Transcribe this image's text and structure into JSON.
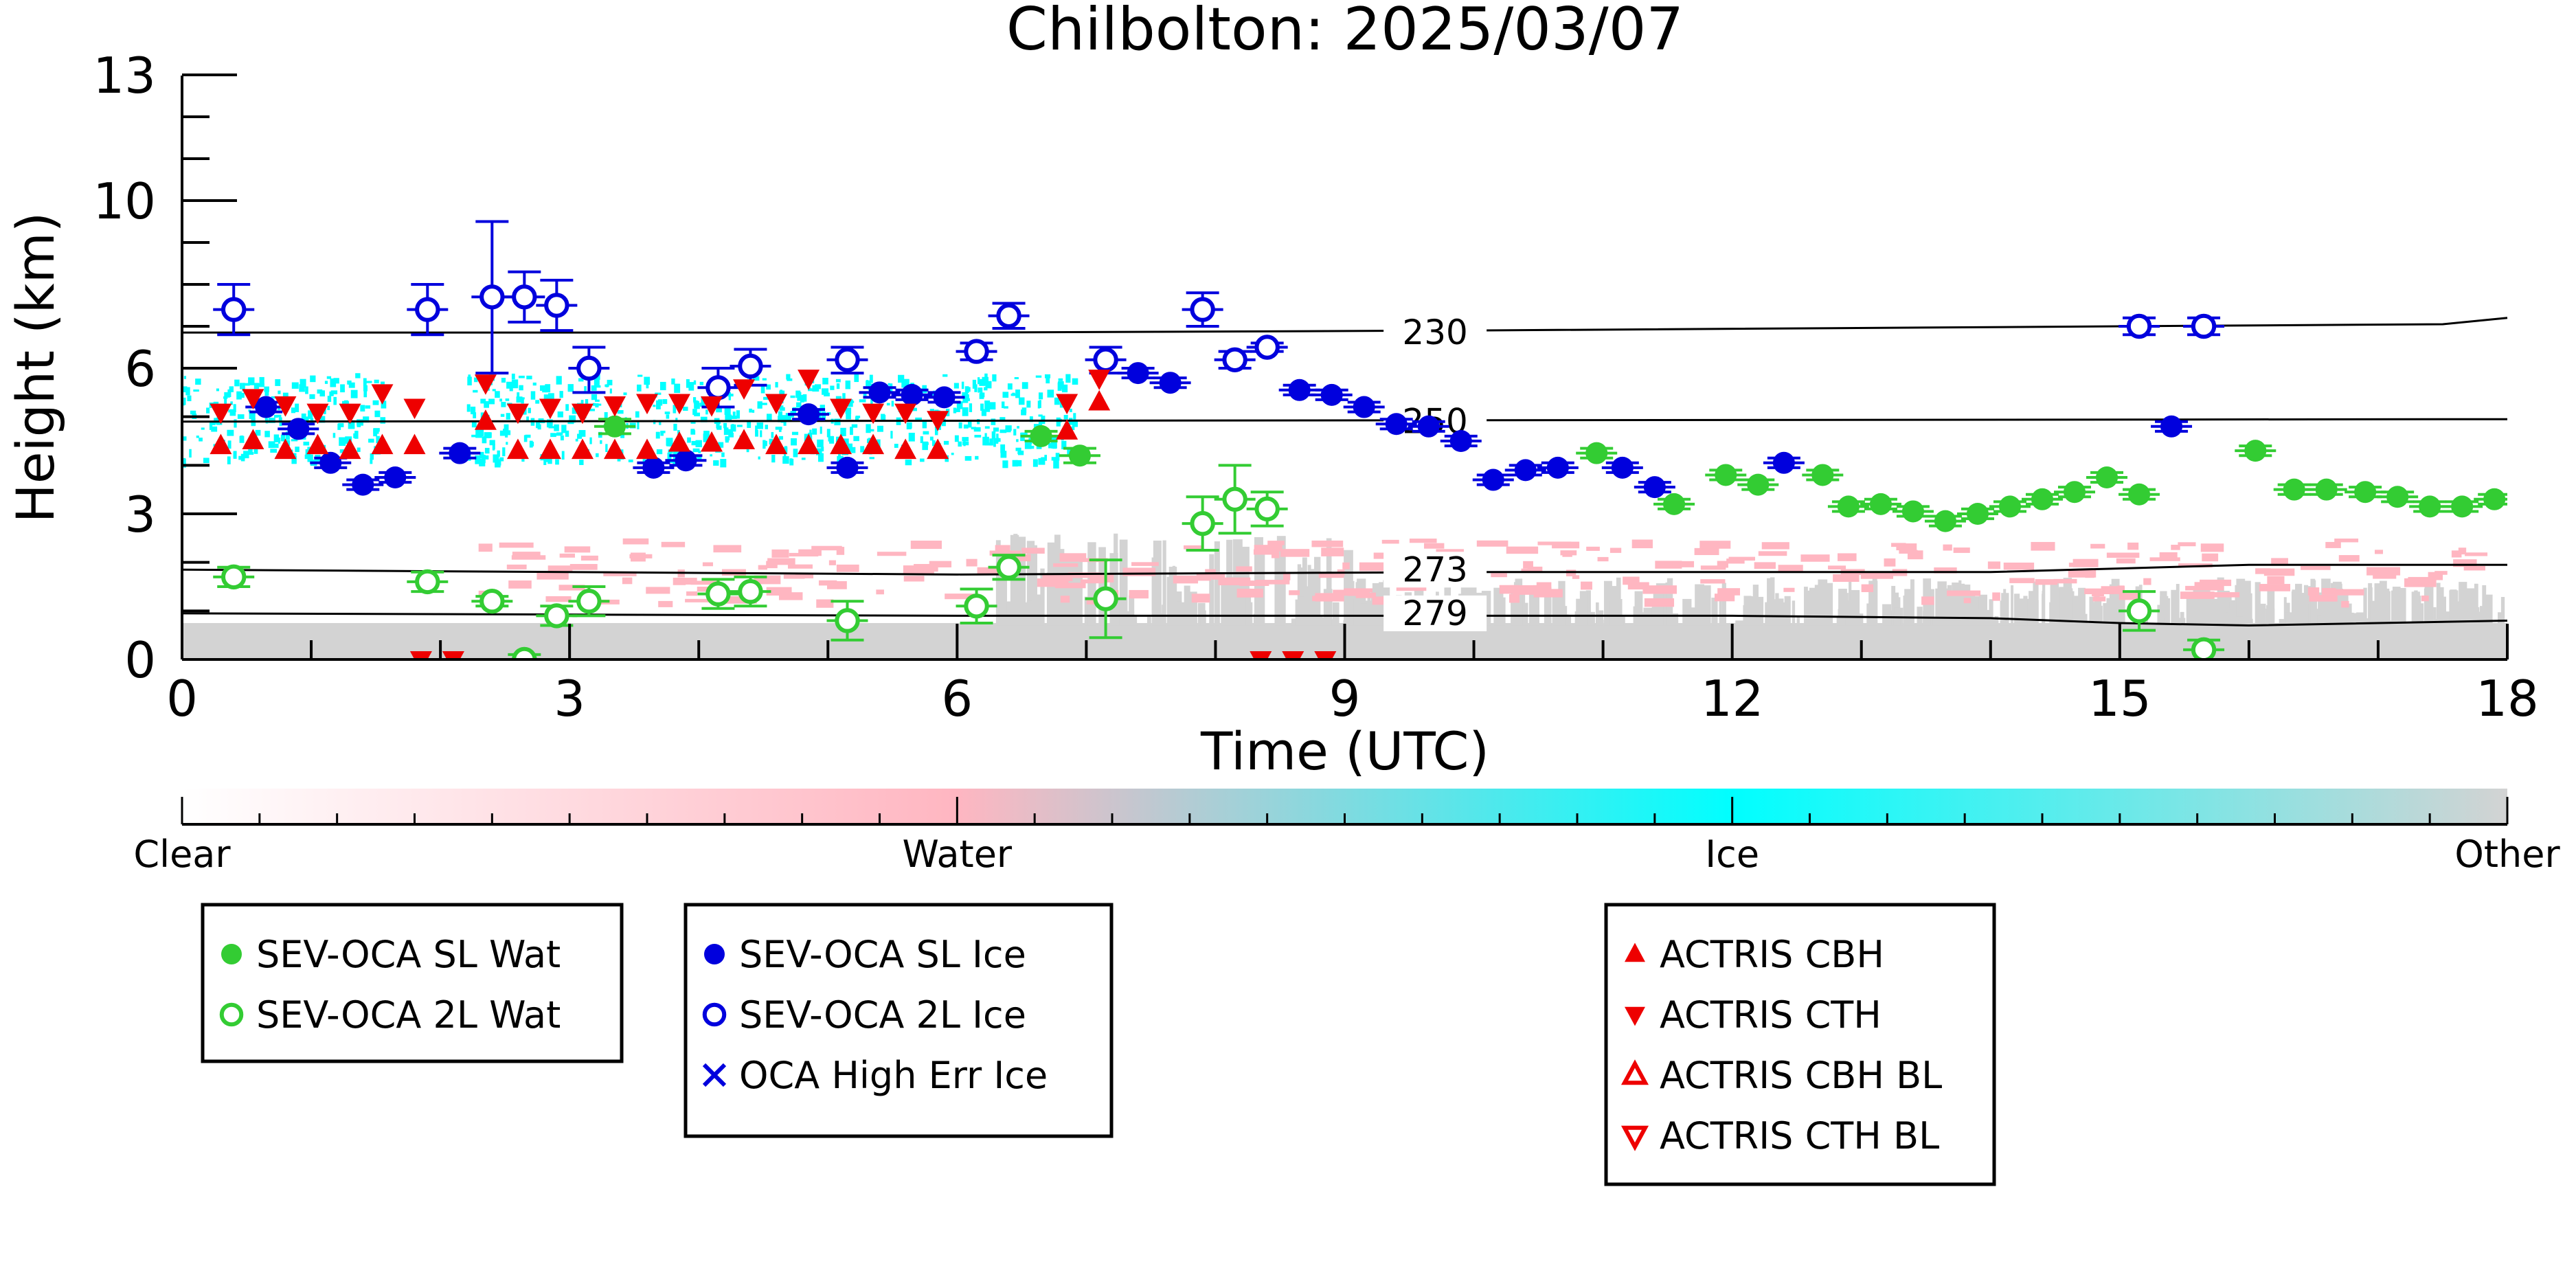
{
  "chart_data": {
    "type": "scatter",
    "title": "Chilbolton: 2025/03/07",
    "xlabel": "Time (UTC)",
    "ylabel": "Height (km)",
    "xlim": [
      0,
      18
    ],
    "ylim": [
      0,
      13
    ],
    "x_ticks": [
      "0",
      "3",
      "6",
      "9",
      "12",
      "15",
      "18"
    ],
    "y_ticks": [
      "0",
      "3",
      "6",
      "10",
      "13"
    ],
    "y_axis_piecewise": true,
    "grid": false,
    "colorbar": {
      "labels": [
        "Clear",
        "Water",
        "Ice",
        "Other"
      ],
      "colors": [
        "#ffffff",
        "#ffb6c1",
        "#00ffff",
        "#d3d3d3"
      ]
    },
    "legend": [
      {
        "label": "SEV-OCA SL Wat",
        "marker": "circle-filled",
        "color": "#33cc33"
      },
      {
        "label": "SEV-OCA 2L Wat",
        "marker": "circle-open",
        "color": "#33cc33"
      },
      {
        "label": "SEV-OCA SL Ice",
        "marker": "circle-filled",
        "color": "#0000dd"
      },
      {
        "label": "SEV-OCA 2L Ice",
        "marker": "circle-open",
        "color": "#0000dd"
      },
      {
        "label": "OCA High Err Ice",
        "marker": "x",
        "color": "#0000dd"
      },
      {
        "label": "ACTRIS CBH",
        "marker": "triangle-up-filled",
        "color": "#ee0000"
      },
      {
        "label": "ACTRIS CTH",
        "marker": "triangle-down-filled",
        "color": "#ee0000"
      },
      {
        "label": "ACTRIS CBH BL",
        "marker": "triangle-up-open",
        "color": "#ee0000"
      },
      {
        "label": "ACTRIS CTH BL",
        "marker": "triangle-down-open",
        "color": "#ee0000"
      }
    ],
    "isotherms": [
      {
        "label": "230",
        "points": [
          [
            0,
            6.85
          ],
          [
            6,
            6.85
          ],
          [
            10,
            6.9
          ],
          [
            15,
            7.0
          ],
          [
            17.5,
            7.05
          ],
          [
            18,
            7.2
          ]
        ]
      },
      {
        "label": "250",
        "points": [
          [
            0,
            4.9
          ],
          [
            18,
            4.95
          ]
        ]
      },
      {
        "label": "273",
        "points": [
          [
            0,
            1.85
          ],
          [
            6,
            1.75
          ],
          [
            10,
            1.8
          ],
          [
            14,
            1.8
          ],
          [
            16,
            1.95
          ],
          [
            18,
            1.95
          ]
        ]
      },
      {
        "label": "279",
        "points": [
          [
            0,
            0.95
          ],
          [
            6,
            0.9
          ],
          [
            12,
            0.9
          ],
          [
            14,
            0.85
          ],
          [
            15,
            0.75
          ],
          [
            16,
            0.7
          ],
          [
            18,
            0.8
          ]
        ]
      }
    ],
    "series": [
      {
        "name": "SEV-OCA SL Wat",
        "x": [
          3.35,
          6.65,
          6.95,
          10.95,
          11.55,
          11.95,
          12.2,
          12.7,
          12.9,
          13.15,
          13.4,
          13.65,
          13.9,
          14.15,
          14.4,
          14.65,
          14.9,
          15.15,
          16.05,
          16.35,
          16.6,
          16.9,
          17.15,
          17.4,
          17.65,
          17.9
        ],
        "y": [
          4.8,
          4.6,
          4.2,
          4.25,
          3.2,
          3.8,
          3.6,
          3.8,
          3.15,
          3.2,
          3.05,
          2.85,
          3.0,
          3.15,
          3.3,
          3.45,
          3.75,
          3.4,
          4.3,
          3.5,
          3.5,
          3.45,
          3.35,
          3.15,
          3.15,
          3.3
        ],
        "err": [
          0.15,
          0.1,
          0.15,
          0.1,
          0.1,
          0.1,
          0.1,
          0.1,
          0.1,
          0.1,
          0.1,
          0.1,
          0.1,
          0.1,
          0.1,
          0.1,
          0.1,
          0.1,
          0.1,
          0.1,
          0.1,
          0.1,
          0.1,
          0.1,
          0.1,
          0.1
        ]
      },
      {
        "name": "SEV-OCA 2L Wat",
        "x": [
          0.4,
          1.9,
          2.4,
          2.65,
          2.9,
          3.15,
          4.15,
          4.4,
          5.15,
          6.15,
          6.4,
          7.15,
          7.9,
          8.15,
          8.4,
          15.15,
          15.65
        ],
        "y": [
          1.7,
          1.6,
          1.2,
          0.0,
          0.9,
          1.2,
          1.35,
          1.4,
          0.8,
          1.1,
          1.9,
          1.25,
          2.8,
          3.3,
          3.1,
          1.0,
          0.2
        ],
        "err": [
          0.2,
          0.2,
          0.1,
          0.1,
          0.2,
          0.3,
          0.3,
          0.3,
          0.4,
          0.35,
          0.25,
          0.8,
          0.55,
          0.7,
          0.35,
          0.4,
          0.2
        ]
      },
      {
        "name": "SEV-OCA SL Ice",
        "x": [
          0.65,
          0.9,
          1.15,
          1.4,
          1.65,
          2.15,
          3.65,
          3.9,
          4.85,
          5.15,
          5.4,
          5.65,
          5.9,
          7.4,
          7.65,
          8.65,
          8.9,
          9.15,
          9.4,
          9.65,
          9.9,
          10.15,
          10.4,
          10.65,
          11.15,
          11.4,
          12.4,
          15.4
        ],
        "y": [
          5.2,
          4.75,
          4.05,
          3.6,
          3.75,
          4.25,
          3.95,
          4.1,
          5.05,
          3.95,
          5.5,
          5.45,
          5.4,
          5.9,
          5.7,
          5.55,
          5.45,
          5.2,
          4.85,
          4.8,
          4.5,
          3.7,
          3.9,
          3.95,
          3.95,
          3.55,
          4.05,
          4.8
        ],
        "err": [
          0.1,
          0.1,
          0.1,
          0.1,
          0.1,
          0.1,
          0.1,
          0.1,
          0.1,
          0.1,
          0.1,
          0.1,
          0.1,
          0.1,
          0.1,
          0.1,
          0.1,
          0.1,
          0.1,
          0.1,
          0.1,
          0.1,
          0.1,
          0.1,
          0.1,
          0.1,
          0.1,
          0.1
        ]
      },
      {
        "name": "SEV-OCA 2L Ice",
        "x": [
          0.4,
          1.9,
          2.4,
          2.65,
          2.9,
          3.15,
          4.15,
          4.4,
          5.15,
          6.15,
          6.4,
          7.15,
          7.9,
          8.15,
          8.4,
          15.15,
          15.65
        ],
        "y": [
          7.4,
          7.4,
          7.7,
          7.7,
          7.5,
          6.0,
          5.6,
          6.05,
          6.2,
          6.4,
          7.25,
          6.2,
          7.4,
          6.2,
          6.5,
          7.0,
          7.0
        ],
        "err": [
          0.6,
          0.6,
          1.8,
          0.6,
          0.6,
          0.5,
          0.4,
          0.4,
          0.3,
          0.2,
          0.3,
          0.3,
          0.4,
          0.2,
          0.1,
          0.2,
          0.2
        ]
      },
      {
        "name": "ACTRIS CBH",
        "x": [
          0.3,
          0.55,
          0.8,
          1.05,
          1.3,
          1.55,
          1.8,
          2.35,
          2.6,
          2.85,
          3.1,
          3.35,
          3.6,
          3.85,
          4.1,
          4.35,
          4.6,
          4.85,
          5.1,
          5.35,
          5.6,
          5.85,
          6.85,
          7.1
        ],
        "y": [
          4.4,
          4.5,
          4.3,
          4.4,
          4.3,
          4.4,
          4.4,
          4.9,
          4.3,
          4.3,
          4.3,
          4.3,
          4.3,
          4.45,
          4.45,
          4.5,
          4.4,
          4.4,
          4.4,
          4.4,
          4.3,
          4.3,
          4.7,
          5.3
        ]
      },
      {
        "name": "ACTRIS CTH",
        "x": [
          0.3,
          0.55,
          0.8,
          1.05,
          1.3,
          1.55,
          1.8,
          2.35,
          2.6,
          2.85,
          3.1,
          3.35,
          3.6,
          3.85,
          4.1,
          4.35,
          4.6,
          4.85,
          5.1,
          5.35,
          5.6,
          5.85,
          6.85,
          7.1,
          1.85,
          2.1,
          8.35,
          8.6,
          8.85
        ],
        "y": [
          5.1,
          5.4,
          5.25,
          5.1,
          5.1,
          5.5,
          5.2,
          5.7,
          5.1,
          5.2,
          5.1,
          5.25,
          5.3,
          5.3,
          5.25,
          5.6,
          5.3,
          5.8,
          5.2,
          5.1,
          5.1,
          4.95,
          5.3,
          5.8,
          0.0,
          0.0,
          0.0,
          0.0,
          0.0
        ]
      }
    ]
  }
}
